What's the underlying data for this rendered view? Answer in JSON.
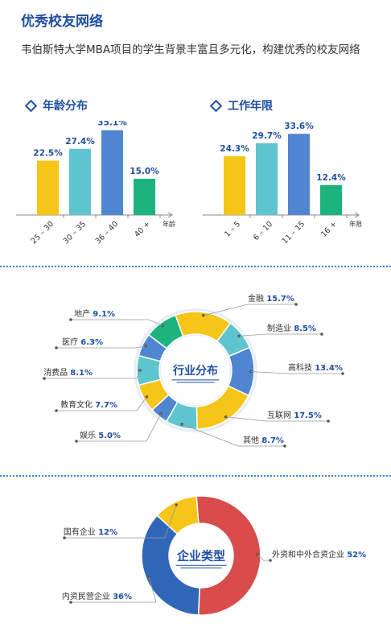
{
  "title": "优秀校友网络",
  "intro": "韦伯斯特大学MBA项目的学生背景丰富且多元化，构建优秀的校友网络",
  "colors": {
    "yellow": "#f5c518",
    "teal": "#5ec5cf",
    "blue": "#4f86cf",
    "green": "#1db37e",
    "red": "#d84c4c",
    "darkblue": "#2f66b8",
    "accent": "#1f4fa3"
  },
  "chart_data": [
    {
      "type": "bar",
      "title": "年龄分布",
      "categories": [
        "25 – 30",
        "30 – 35",
        "36 – 40",
        "40 +"
      ],
      "values": [
        22.5,
        27.4,
        35.1,
        15.0
      ],
      "value_labels": [
        "22.5%",
        "27.4%",
        "35.1%",
        "15.0%"
      ],
      "colors": [
        "#f5c518",
        "#5ec5cf",
        "#4f86cf",
        "#1db37e"
      ],
      "xlabel": "年龄",
      "ylim": [
        0,
        40
      ]
    },
    {
      "type": "bar",
      "title": "工作年限",
      "categories": [
        "1 – 5",
        "6 – 10",
        "11 – 15",
        "16 +"
      ],
      "values": [
        24.3,
        29.7,
        33.6,
        12.4
      ],
      "value_labels": [
        "24.3%",
        "29.7%",
        "33.6%",
        "12.4%"
      ],
      "colors": [
        "#f5c518",
        "#5ec5cf",
        "#4f86cf",
        "#1db37e"
      ],
      "xlabel": "年限",
      "ylim": [
        0,
        40
      ]
    },
    {
      "type": "pie",
      "title": "行业分布",
      "categories": [
        "金融",
        "制造业",
        "高科技",
        "互联网",
        "其他",
        "娱乐",
        "教育文化",
        "消费品",
        "医疗",
        "地产"
      ],
      "values": [
        15.7,
        8.5,
        13.4,
        17.5,
        8.7,
        5.0,
        7.7,
        8.1,
        6.3,
        9.1
      ],
      "value_labels": [
        "15.7%",
        "8.5%",
        "13.4%",
        "17.5%",
        "8.7%",
        "5.0%",
        "7.7%",
        "8.1%",
        "6.3%",
        "9.1%"
      ],
      "colors": [
        "#f5c518",
        "#5ec5cf",
        "#4f86cf",
        "#f5c518",
        "#5ec5cf",
        "#4f86cf",
        "#f5c518",
        "#5ec5cf",
        "#4f86cf",
        "#1db37e"
      ]
    },
    {
      "type": "pie",
      "title": "企业类型",
      "categories": [
        "外资和中外合资企业",
        "内资民营企业",
        "国有企业"
      ],
      "values": [
        52,
        36,
        12
      ],
      "value_labels": [
        "52%",
        "36%",
        "12%"
      ],
      "colors": [
        "#d84c4c",
        "#2f66b8",
        "#f5c518"
      ]
    }
  ]
}
